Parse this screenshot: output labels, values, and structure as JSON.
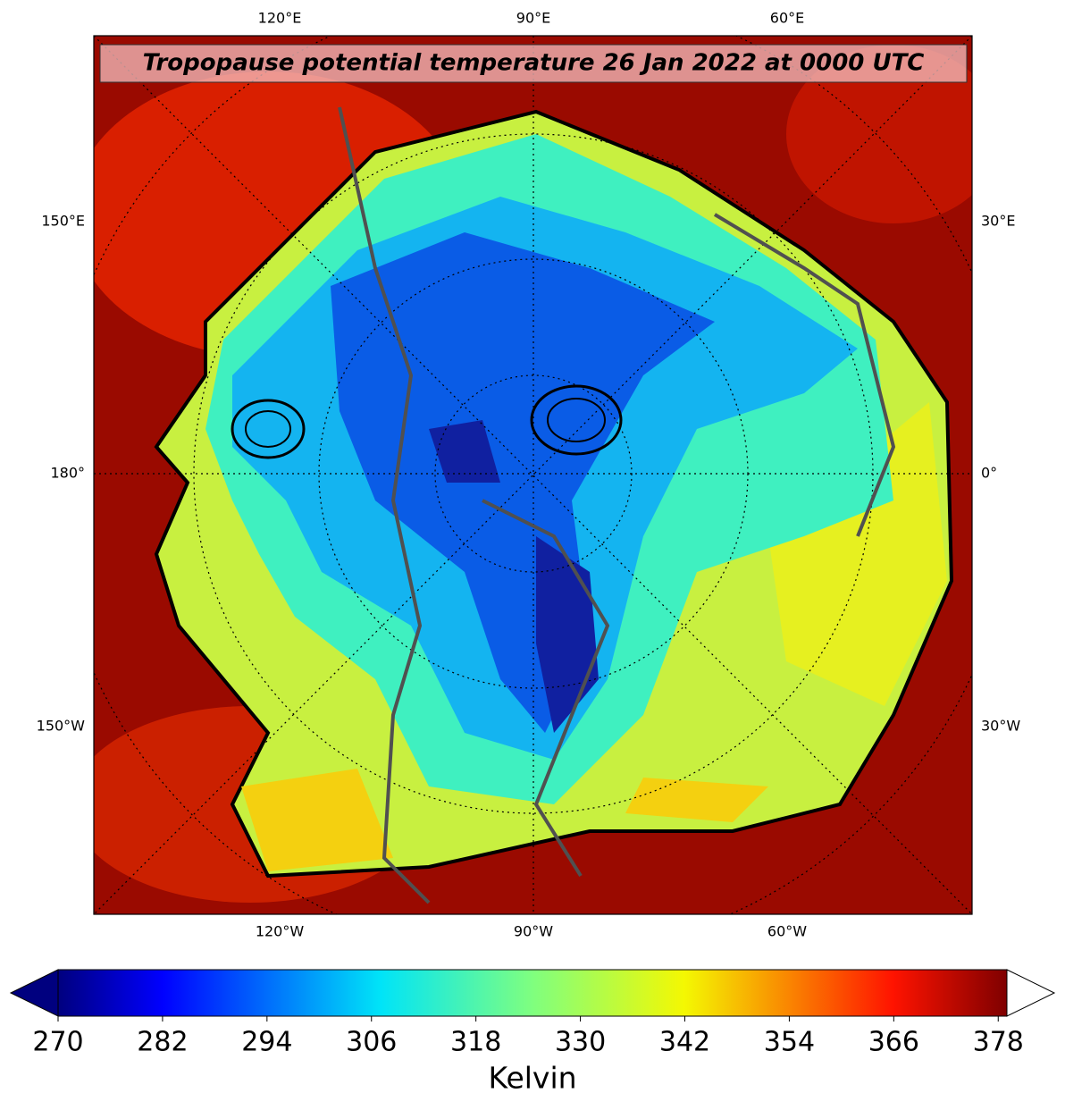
{
  "map": {
    "title": "Tropopause potential temperature 26 Jan 2022 at 0000 UTC",
    "top_labels": [
      "120°E",
      "90°E",
      "60°E"
    ],
    "bottom_labels": [
      "120°W",
      "90°W",
      "60°W"
    ],
    "left_labels": [
      "150°E",
      "180°",
      "150°W"
    ],
    "right_labels": [
      "30°E",
      "0°",
      "30°W"
    ]
  },
  "colorbar": {
    "label": "Kelvin",
    "lim": [
      270,
      379
    ],
    "ticks": [
      270,
      282,
      294,
      306,
      318,
      330,
      342,
      354,
      366,
      378
    ]
  }
}
